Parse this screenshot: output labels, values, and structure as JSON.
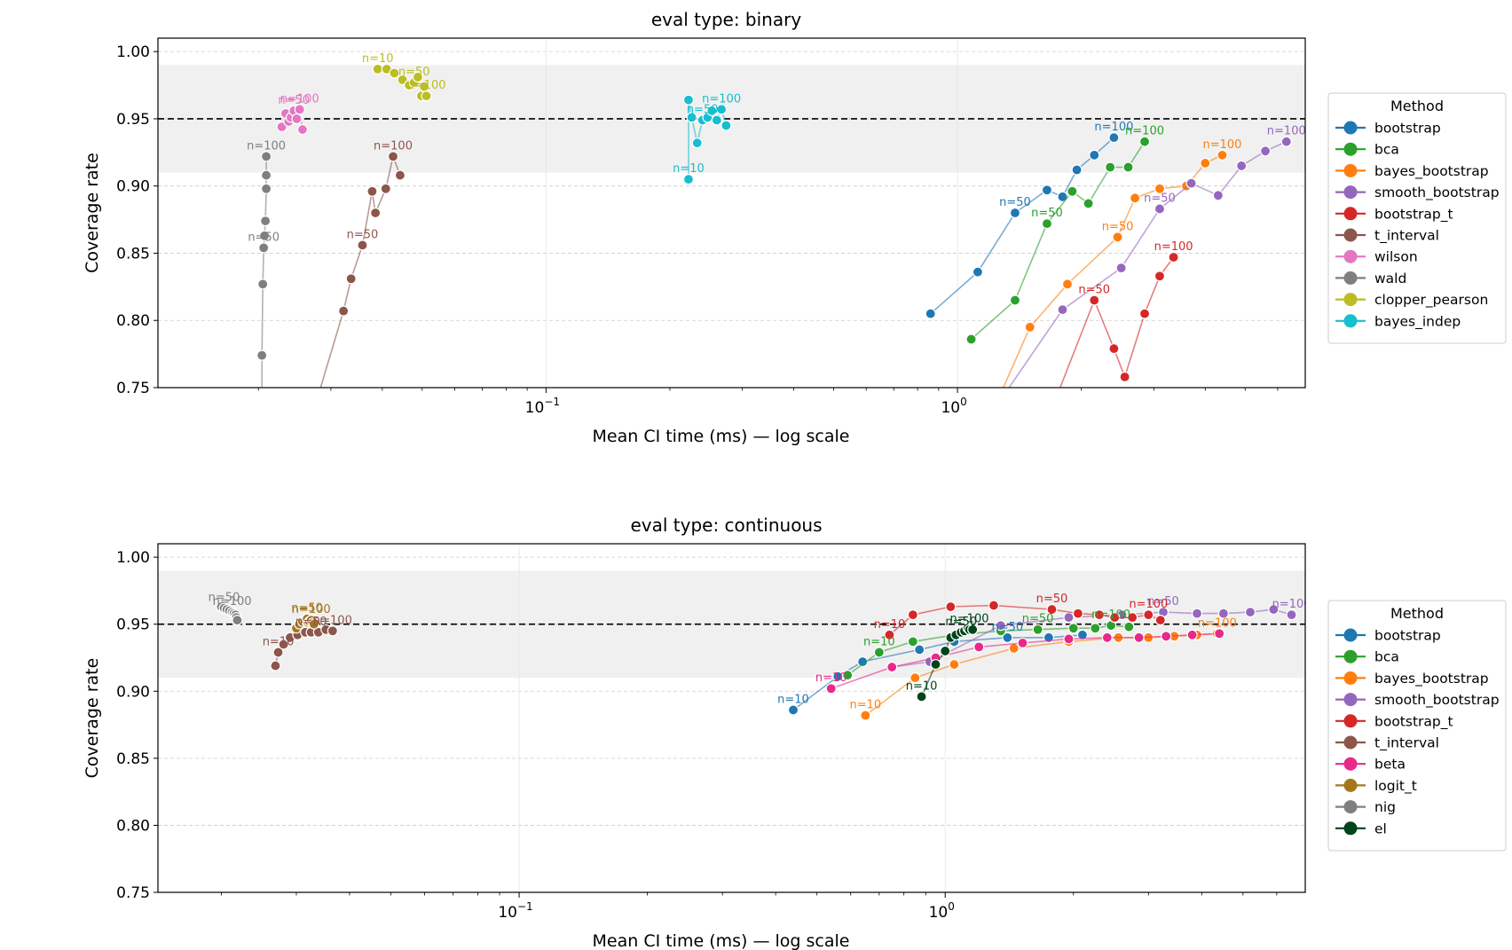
{
  "chart_data": [
    {
      "type": "line",
      "title": "eval type: binary",
      "xlabel": "Mean CI time (ms) — log scale",
      "ylabel": "Coverage rate",
      "xscale": "log",
      "xlim": [
        0.0114,
        7.0
      ],
      "ylim": [
        0.75,
        1.01
      ],
      "yticks": [
        "0.75",
        "0.80",
        "0.85",
        "0.90",
        "0.95",
        "1.00"
      ],
      "xticks": [
        {
          "value": 0.1,
          "base": "10",
          "exp": "−1"
        },
        {
          "value": 1,
          "base": "10",
          "exp": "0"
        }
      ],
      "grid": true,
      "reference_line": 0.95,
      "band": [
        0.91,
        0.99
      ],
      "legend": {
        "title": "Method",
        "placement": "right"
      },
      "series": [
        {
          "name": "bootstrap",
          "color": "#1f77b4",
          "x": [
            0.86,
            1.12,
            1.38,
            1.65,
            1.8,
            1.95,
            2.15,
            2.4
          ],
          "y": [
            0.805,
            0.836,
            0.88,
            0.897,
            0.892,
            0.912,
            0.923,
            0.936
          ],
          "labels": [
            {
              "text": "n=50",
              "i": 2
            },
            {
              "text": "n=100",
              "i": 7
            }
          ]
        },
        {
          "name": "bca",
          "color": "#2ca02c",
          "x": [
            1.08,
            1.38,
            1.65,
            1.9,
            2.08,
            2.35,
            2.6,
            2.85
          ],
          "y": [
            0.786,
            0.815,
            0.872,
            0.896,
            0.887,
            0.914,
            0.914,
            0.933
          ],
          "labels": [
            {
              "text": "n=50",
              "i": 2
            },
            {
              "text": "n=100",
              "i": 7
            }
          ]
        },
        {
          "name": "bayes_bootstrap",
          "color": "#ff7f0e",
          "x": [
            1.25,
            1.5,
            1.85,
            2.45,
            2.7,
            3.1,
            3.6,
            4.0,
            4.4
          ],
          "y": [
            0.74,
            0.795,
            0.827,
            0.862,
            0.891,
            0.898,
            0.9,
            0.917,
            0.923
          ],
          "labels": [
            {
              "text": "n=50",
              "i": 3
            },
            {
              "text": "n=100",
              "i": 8
            }
          ]
        },
        {
          "name": "smooth_bootstrap",
          "color": "#9467bd",
          "x": [
            1.3,
            1.8,
            2.5,
            3.1,
            3.7,
            4.3,
            4.9,
            5.6,
            6.3
          ],
          "y": [
            0.745,
            0.808,
            0.839,
            0.883,
            0.902,
            0.893,
            0.915,
            0.926,
            0.933
          ],
          "labels": [
            {
              "text": "n=50",
              "i": 3
            },
            {
              "text": "n=100",
              "i": 8
            }
          ]
        },
        {
          "name": "bootstrap_t",
          "color": "#d62728",
          "x": [
            1.75,
            2.15,
            2.4,
            2.55,
            2.85,
            3.1,
            3.35
          ],
          "y": [
            0.745,
            0.815,
            0.779,
            0.758,
            0.805,
            0.833,
            0.847
          ],
          "labels": [
            {
              "text": "n=50",
              "i": 1
            },
            {
              "text": "n=100",
              "i": 6
            }
          ]
        },
        {
          "name": "t_interval",
          "color": "#8c564b",
          "x": [
            0.028,
            0.0322,
            0.0336,
            0.0358,
            0.0378,
            0.0385,
            0.0408,
            0.0425,
            0.0442
          ],
          "y": [
            0.745,
            0.807,
            0.831,
            0.856,
            0.896,
            0.88,
            0.898,
            0.922,
            0.908
          ],
          "labels": [
            {
              "text": "n=50",
              "i": 3
            },
            {
              "text": "n=100",
              "i": 7
            }
          ]
        },
        {
          "name": "wilson",
          "color": "#e377c2",
          "x": [
            0.0228,
            0.0233,
            0.0237,
            0.024,
            0.0244,
            0.0248,
            0.0252,
            0.0256
          ],
          "y": [
            0.944,
            0.954,
            0.948,
            0.951,
            0.956,
            0.95,
            0.957,
            0.942
          ],
          "labels": [
            {
              "text": "n=50",
              "i": 4
            },
            {
              "text": "n=100",
              "i": 6
            }
          ]
        },
        {
          "name": "wald",
          "color": "#7f7f7f",
          "x": [
            0.0204,
            0.0204,
            0.0205,
            0.0206,
            0.0207,
            0.0208,
            0.0209,
            0.0209,
            0.0209
          ],
          "y": [
            0.74,
            0.774,
            0.827,
            0.854,
            0.863,
            0.874,
            0.898,
            0.908,
            0.922
          ],
          "labels": [
            {
              "text": "n=50",
              "i": 3
            },
            {
              "text": "n=100",
              "i": 8
            }
          ]
        },
        {
          "name": "clopper_pearson",
          "color": "#bcbd22",
          "x": [
            0.039,
            0.041,
            0.0428,
            0.0448,
            0.0465,
            0.0478,
            0.0488,
            0.0498,
            0.0506,
            0.0512
          ],
          "y": [
            0.987,
            0.987,
            0.984,
            0.979,
            0.975,
            0.977,
            0.981,
            0.967,
            0.974,
            0.967
          ],
          "labels": [
            {
              "text": "n=10",
              "i": 0
            },
            {
              "text": "n=50",
              "i": 5
            },
            {
              "text": "n=100",
              "i": 9
            }
          ]
        },
        {
          "name": "bayes_indep",
          "color": "#17becf",
          "x": [
            0.222,
            0.222,
            0.226,
            0.233,
            0.24,
            0.247,
            0.253,
            0.26,
            0.267,
            0.274
          ],
          "y": [
            0.905,
            0.964,
            0.951,
            0.932,
            0.949,
            0.951,
            0.956,
            0.949,
            0.957,
            0.945
          ],
          "labels": [
            {
              "text": "n=10",
              "i": 0
            },
            {
              "text": "n=50",
              "i": 4
            },
            {
              "text": "n=100",
              "i": 8
            }
          ]
        }
      ]
    },
    {
      "type": "line",
      "title": "eval type: continuous",
      "xlabel": "Mean CI time (ms) — log scale",
      "ylabel": "Coverage rate",
      "xscale": "log",
      "xlim": [
        0.0142,
        7.0
      ],
      "ylim": [
        0.75,
        1.01
      ],
      "yticks": [
        "0.75",
        "0.80",
        "0.85",
        "0.90",
        "0.95",
        "1.00"
      ],
      "xticks": [
        {
          "value": 0.1,
          "base": "10",
          "exp": "−1"
        },
        {
          "value": 1,
          "base": "10",
          "exp": "0"
        }
      ],
      "grid": true,
      "reference_line": 0.95,
      "band": [
        0.91,
        0.99
      ],
      "legend": {
        "title": "Method",
        "placement": "right"
      },
      "series": [
        {
          "name": "bootstrap",
          "color": "#1f77b4",
          "x": [
            0.44,
            0.56,
            0.64,
            0.87,
            1.05,
            1.4,
            1.75,
            2.1
          ],
          "y": [
            0.886,
            0.911,
            0.922,
            0.931,
            0.937,
            0.94,
            0.94,
            0.942
          ],
          "labels": [
            {
              "text": "n=10",
              "i": 0
            },
            {
              "text": "n=50",
              "i": 5
            }
          ]
        },
        {
          "name": "bca",
          "color": "#2ca02c",
          "x": [
            0.59,
            0.7,
            0.84,
            1.05,
            1.35,
            1.65,
            2.0,
            2.25,
            2.45,
            2.7
          ],
          "y": [
            0.912,
            0.929,
            0.937,
            0.942,
            0.945,
            0.946,
            0.947,
            0.947,
            0.949,
            0.948
          ],
          "labels": [
            {
              "text": "n=10",
              "i": 1
            },
            {
              "text": "n=50",
              "i": 5
            },
            {
              "text": "n=100",
              "i": 8
            }
          ]
        },
        {
          "name": "bayes_bootstrap",
          "color": "#ff7f0e",
          "x": [
            0.65,
            0.85,
            1.05,
            1.45,
            1.95,
            2.55,
            3.0,
            3.45,
            3.9,
            4.35
          ],
          "y": [
            0.882,
            0.91,
            0.92,
            0.932,
            0.937,
            0.94,
            0.94,
            0.941,
            0.942,
            0.943
          ],
          "labels": [
            {
              "text": "n=10",
              "i": 0
            },
            {
              "text": "n=100",
              "i": 9
            }
          ]
        },
        {
          "name": "smooth_bootstrap",
          "color": "#9467bd",
          "x": [
            0.75,
            0.92,
            1.35,
            1.95,
            2.6,
            3.25,
            3.9,
            4.5,
            5.2,
            5.9,
            6.5
          ],
          "y": [
            0.918,
            0.922,
            0.949,
            0.955,
            0.957,
            0.959,
            0.958,
            0.958,
            0.959,
            0.961,
            0.957
          ],
          "labels": [
            {
              "text": "n=50",
              "i": 5
            },
            {
              "text": "n=100",
              "i": 10
            }
          ]
        },
        {
          "name": "bootstrap_t",
          "color": "#d62728",
          "x": [
            0.74,
            0.84,
            1.03,
            1.3,
            1.78,
            2.05,
            2.3,
            2.5,
            2.75,
            3.0,
            3.2
          ],
          "y": [
            0.942,
            0.957,
            0.963,
            0.964,
            0.961,
            0.958,
            0.957,
            0.955,
            0.955,
            0.957,
            0.953
          ],
          "labels": [
            {
              "text": "n=10",
              "i": 0
            },
            {
              "text": "n=50",
              "i": 4
            },
            {
              "text": "n=100",
              "i": 9
            }
          ]
        },
        {
          "name": "t_interval",
          "color": "#8c564b",
          "x": [
            0.0268,
            0.0272,
            0.028,
            0.029,
            0.0302,
            0.0315,
            0.0325,
            0.0338,
            0.0352,
            0.0365
          ],
          "y": [
            0.919,
            0.929,
            0.935,
            0.94,
            0.942,
            0.944,
            0.944,
            0.944,
            0.946,
            0.945
          ],
          "labels": [
            {
              "text": "n=10",
              "i": 1
            },
            {
              "text": "n=50",
              "i": 6
            },
            {
              "text": "n=100",
              "i": 9
            }
          ]
        },
        {
          "name": "beta",
          "color": "#e7298a",
          "x": [
            0.54,
            0.75,
            0.95,
            1.2,
            1.52,
            1.95,
            2.4,
            2.85,
            3.3,
            3.8,
            4.4
          ],
          "y": [
            0.902,
            0.918,
            0.925,
            0.933,
            0.936,
            0.939,
            0.94,
            0.94,
            0.941,
            0.942,
            0.943
          ],
          "labels": [
            {
              "text": "n=10",
              "i": 0
            }
          ]
        },
        {
          "name": "logit_t",
          "color": "#a6761d",
          "x": [
            0.03,
            0.0305,
            0.031,
            0.0315,
            0.0318,
            0.032,
            0.0322,
            0.0325,
            0.0328,
            0.033
          ],
          "y": [
            0.947,
            0.95,
            0.952,
            0.953,
            0.954,
            0.951,
            0.952,
            0.953,
            0.951,
            0.95
          ],
          "labels": [
            {
              "text": "n=50",
              "i": 4
            },
            {
              "text": "n=100",
              "i": 7
            }
          ]
        },
        {
          "name": "nig",
          "color": "#7f7f7f",
          "x": [
            0.02,
            0.0203,
            0.0206,
            0.0209,
            0.0212,
            0.0214,
            0.0216,
            0.0217,
            0.0218
          ],
          "y": [
            0.963,
            0.962,
            0.961,
            0.96,
            0.959,
            0.958,
            0.957,
            0.955,
            0.953
          ],
          "labels": [
            {
              "text": "n=50",
              "i": 1
            },
            {
              "text": "n=100",
              "i": 4
            }
          ]
        },
        {
          "name": "el",
          "color": "#00441b",
          "x": [
            0.88,
            0.95,
            1.0,
            1.03,
            1.06,
            1.09,
            1.11,
            1.13,
            1.14,
            1.16
          ],
          "y": [
            0.896,
            0.92,
            0.93,
            0.94,
            0.942,
            0.944,
            0.945,
            0.947,
            0.946,
            0.946
          ],
          "labels": [
            {
              "text": "n=10",
              "i": 0
            },
            {
              "text": "n=50",
              "i": 5
            },
            {
              "text": "n=100",
              "i": 8
            }
          ]
        }
      ]
    }
  ]
}
